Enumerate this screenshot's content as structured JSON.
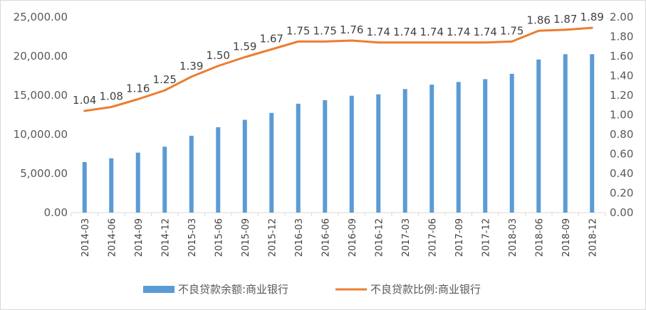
{
  "chart_data": {
    "type": "bar+line",
    "categories": [
      "2014-03",
      "2014-06",
      "2014-09",
      "2014-12",
      "2015-03",
      "2015-06",
      "2015-09",
      "2015-12",
      "2016-03",
      "2016-06",
      "2016-09",
      "2016-12",
      "2017-03",
      "2017-06",
      "2017-09",
      "2017-12",
      "2018-03",
      "2018-06",
      "2018-09",
      "2018-12"
    ],
    "series": [
      {
        "name": "不良贷款余额:商业银行",
        "type": "bar",
        "axis": "left",
        "color": "#5b9bd5",
        "values": [
          6461,
          6944,
          7669,
          8426,
          9825,
          10919,
          11863,
          12744,
          13921,
          14373,
          14939,
          15122,
          15795,
          16358,
          16702,
          17057,
          17742,
          19571,
          20254,
          20254
        ]
      },
      {
        "name": "不良贷款比例:商业银行",
        "type": "line",
        "axis": "right",
        "color": "#ed7d31",
        "values": [
          1.04,
          1.08,
          1.16,
          1.25,
          1.39,
          1.5,
          1.59,
          1.67,
          1.75,
          1.75,
          1.76,
          1.74,
          1.74,
          1.74,
          1.74,
          1.74,
          1.75,
          1.86,
          1.87,
          1.89
        ],
        "data_labels": [
          "1.04",
          "1.08",
          "1.16",
          "1.25",
          "1.39",
          "1.50",
          "1.59",
          "1.67",
          "1.75",
          "1.75",
          "1.76",
          "1.74",
          "1.74",
          "1.74",
          "1.74",
          "1.74",
          "1.75",
          "1.86",
          "1.87",
          "1.89"
        ]
      }
    ],
    "y_left": {
      "lim": [
        0,
        25000
      ],
      "ticks": [
        0,
        5000,
        10000,
        15000,
        20000,
        25000
      ],
      "tick_labels": [
        "0.00",
        "5,000.00",
        "10,000.00",
        "15,000.00",
        "20,000.00",
        "25,000.00"
      ]
    },
    "y_right": {
      "lim": [
        0,
        2.0
      ],
      "ticks": [
        0,
        0.2,
        0.4,
        0.6,
        0.8,
        1.0,
        1.2,
        1.4,
        1.6,
        1.8,
        2.0
      ],
      "tick_labels": [
        "0.00",
        "0.20",
        "0.40",
        "0.60",
        "0.80",
        "1.00",
        "1.20",
        "1.40",
        "1.60",
        "1.80",
        "2.00"
      ]
    },
    "grid": false,
    "legend_position": "bottom",
    "title": "",
    "xlabel": "",
    "ylabel": ""
  }
}
